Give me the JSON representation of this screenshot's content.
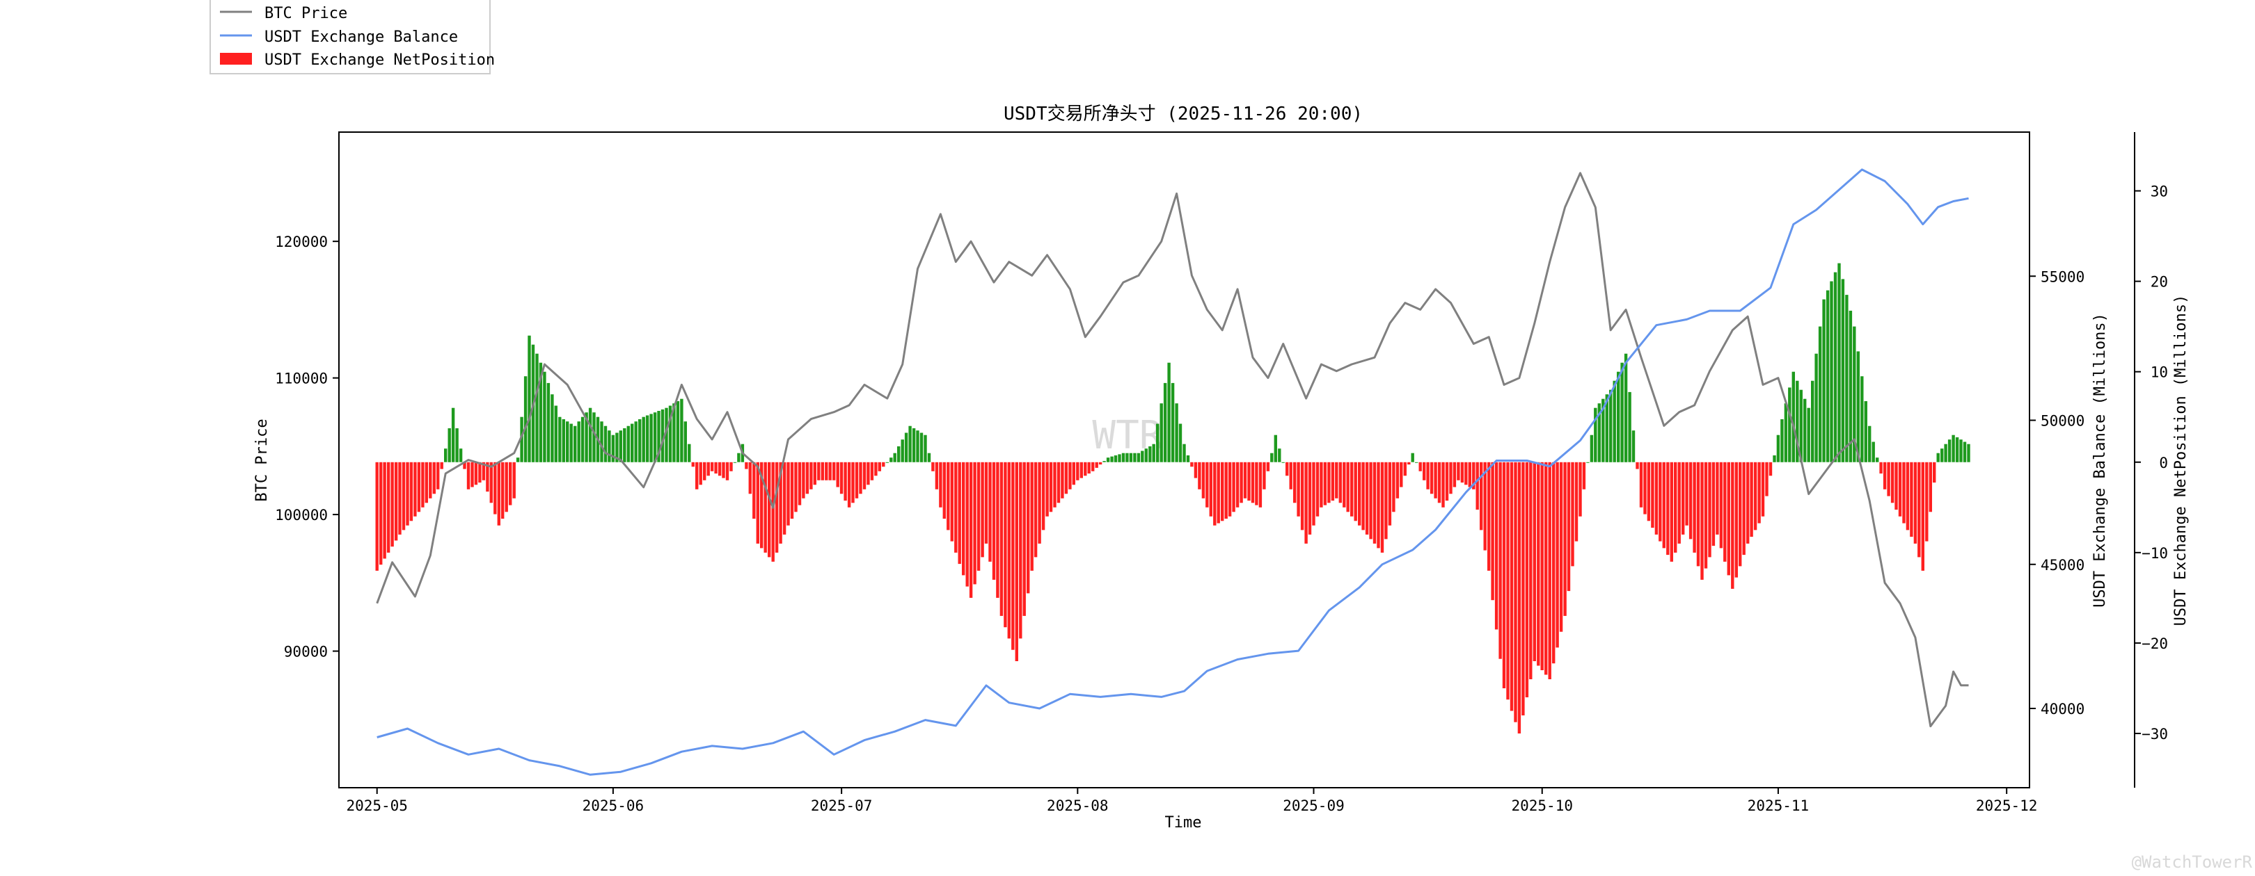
{
  "chart_data": {
    "type": "combo",
    "title": "USDT交易所净头寸 (2025-11-26 20:00)",
    "xlabel": "Time",
    "ylabel_left": "BTC Price",
    "ylabel_right1": "USDT Exchange Balance (Millions)",
    "ylabel_right2": "USDT Exchange NetPosition (Millions)",
    "x_ticks": [
      "2025-05",
      "2025-06",
      "2025-07",
      "2025-08",
      "2025-09",
      "2025-10",
      "2025-11",
      "2025-12"
    ],
    "x_range": [
      "2025-04-26",
      "2025-12-04"
    ],
    "y_left_ticks": [
      "90000",
      "100000",
      "110000",
      "120000"
    ],
    "y_left_range": [
      80000,
      128000
    ],
    "y_right1_ticks": [
      "40000",
      "45000",
      "50000",
      "55000"
    ],
    "y_right1_range": [
      37250,
      60000
    ],
    "y_right2_ticks": [
      "30",
      "20",
      "10",
      "0",
      "−10",
      "−20",
      "−30"
    ],
    "y_right2_range": [
      -36,
      36.5
    ],
    "legend_position": "outside-top-left",
    "legend": [
      {
        "label": "BTC Price",
        "color": "#808080",
        "kind": "line"
      },
      {
        "label": "USDT Exchange Balance",
        "color": "#6495ED",
        "kind": "line"
      },
      {
        "label": "USDT Exchange NetPosition",
        "color": "#ff2020",
        "kind": "patch"
      }
    ],
    "colors": {
      "price": "#808080",
      "balance": "#6495ED",
      "positive": "#1e9a1e",
      "negative": "#ff2020"
    },
    "watermark": "WTR",
    "footer_watermark": "@WatchTowerR",
    "series": [
      {
        "name": "BTC Price",
        "axis": "left",
        "points": [
          [
            "2025-05-01",
            93500
          ],
          [
            "2025-05-03",
            96500
          ],
          [
            "2025-05-06",
            94000
          ],
          [
            "2025-05-08",
            97000
          ],
          [
            "2025-05-10",
            103000
          ],
          [
            "2025-05-13",
            104000
          ],
          [
            "2025-05-16",
            103500
          ],
          [
            "2025-05-19",
            104500
          ],
          [
            "2025-05-21",
            107000
          ],
          [
            "2025-05-23",
            111000
          ],
          [
            "2025-05-26",
            109500
          ],
          [
            "2025-05-28",
            107500
          ],
          [
            "2025-05-31",
            104500
          ],
          [
            "2025-06-02",
            104000
          ],
          [
            "2025-06-05",
            102000
          ],
          [
            "2025-06-07",
            104500
          ],
          [
            "2025-06-10",
            109500
          ],
          [
            "2025-06-12",
            107000
          ],
          [
            "2025-06-14",
            105500
          ],
          [
            "2025-06-16",
            107500
          ],
          [
            "2025-06-18",
            104500
          ],
          [
            "2025-06-20",
            103500
          ],
          [
            "2025-06-22",
            100500
          ],
          [
            "2025-06-24",
            105500
          ],
          [
            "2025-06-27",
            107000
          ],
          [
            "2025-06-30",
            107500
          ],
          [
            "2025-07-02",
            108000
          ],
          [
            "2025-07-04",
            109500
          ],
          [
            "2025-07-07",
            108500
          ],
          [
            "2025-07-09",
            111000
          ],
          [
            "2025-07-11",
            118000
          ],
          [
            "2025-07-14",
            122000
          ],
          [
            "2025-07-16",
            118500
          ],
          [
            "2025-07-18",
            120000
          ],
          [
            "2025-07-21",
            117000
          ],
          [
            "2025-07-23",
            118500
          ],
          [
            "2025-07-26",
            117500
          ],
          [
            "2025-07-28",
            119000
          ],
          [
            "2025-07-31",
            116500
          ],
          [
            "2025-08-02",
            113000
          ],
          [
            "2025-08-04",
            114500
          ],
          [
            "2025-08-07",
            117000
          ],
          [
            "2025-08-09",
            117500
          ],
          [
            "2025-08-12",
            120000
          ],
          [
            "2025-08-14",
            123500
          ],
          [
            "2025-08-16",
            117500
          ],
          [
            "2025-08-18",
            115000
          ],
          [
            "2025-08-20",
            113500
          ],
          [
            "2025-08-22",
            116500
          ],
          [
            "2025-08-24",
            111500
          ],
          [
            "2025-08-26",
            110000
          ],
          [
            "2025-08-28",
            112500
          ],
          [
            "2025-08-31",
            108500
          ],
          [
            "2025-09-02",
            111000
          ],
          [
            "2025-09-04",
            110500
          ],
          [
            "2025-09-06",
            111000
          ],
          [
            "2025-09-09",
            111500
          ],
          [
            "2025-09-11",
            114000
          ],
          [
            "2025-09-13",
            115500
          ],
          [
            "2025-09-15",
            115000
          ],
          [
            "2025-09-17",
            116500
          ],
          [
            "2025-09-19",
            115500
          ],
          [
            "2025-09-22",
            112500
          ],
          [
            "2025-09-24",
            113000
          ],
          [
            "2025-09-26",
            109500
          ],
          [
            "2025-09-28",
            110000
          ],
          [
            "2025-09-30",
            114000
          ],
          [
            "2025-10-02",
            118500
          ],
          [
            "2025-10-04",
            122500
          ],
          [
            "2025-10-06",
            125000
          ],
          [
            "2025-10-08",
            122500
          ],
          [
            "2025-10-10",
            113500
          ],
          [
            "2025-10-12",
            115000
          ],
          [
            "2025-10-14",
            111500
          ],
          [
            "2025-10-17",
            106500
          ],
          [
            "2025-10-19",
            107500
          ],
          [
            "2025-10-21",
            108000
          ],
          [
            "2025-10-23",
            110500
          ],
          [
            "2025-10-26",
            113500
          ],
          [
            "2025-10-28",
            114500
          ],
          [
            "2025-10-30",
            109500
          ],
          [
            "2025-11-01",
            110000
          ],
          [
            "2025-11-03",
            106500
          ],
          [
            "2025-11-05",
            101500
          ],
          [
            "2025-11-07",
            103000
          ],
          [
            "2025-11-09",
            104500
          ],
          [
            "2025-11-11",
            105500
          ],
          [
            "2025-11-13",
            101000
          ],
          [
            "2025-11-15",
            95000
          ],
          [
            "2025-11-17",
            93500
          ],
          [
            "2025-11-19",
            91000
          ],
          [
            "2025-11-21",
            84500
          ],
          [
            "2025-11-23",
            86000
          ],
          [
            "2025-11-24",
            88500
          ],
          [
            "2025-11-25",
            87500
          ],
          [
            "2025-11-26",
            87500
          ]
        ]
      },
      {
        "name": "USDT Exchange Balance",
        "axis": "right1",
        "points": [
          [
            "2025-05-01",
            39000
          ],
          [
            "2025-05-05",
            39300
          ],
          [
            "2025-05-09",
            38800
          ],
          [
            "2025-05-13",
            38400
          ],
          [
            "2025-05-17",
            38600
          ],
          [
            "2025-05-21",
            38200
          ],
          [
            "2025-05-25",
            38000
          ],
          [
            "2025-05-29",
            37700
          ],
          [
            "2025-06-02",
            37800
          ],
          [
            "2025-06-06",
            38100
          ],
          [
            "2025-06-10",
            38500
          ],
          [
            "2025-06-14",
            38700
          ],
          [
            "2025-06-18",
            38600
          ],
          [
            "2025-06-22",
            38800
          ],
          [
            "2025-06-26",
            39200
          ],
          [
            "2025-06-30",
            38400
          ],
          [
            "2025-07-04",
            38900
          ],
          [
            "2025-07-08",
            39200
          ],
          [
            "2025-07-12",
            39600
          ],
          [
            "2025-07-16",
            39400
          ],
          [
            "2025-07-20",
            40800
          ],
          [
            "2025-07-23",
            40200
          ],
          [
            "2025-07-27",
            40000
          ],
          [
            "2025-07-31",
            40500
          ],
          [
            "2025-08-04",
            40400
          ],
          [
            "2025-08-08",
            40500
          ],
          [
            "2025-08-12",
            40400
          ],
          [
            "2025-08-15",
            40600
          ],
          [
            "2025-08-18",
            41300
          ],
          [
            "2025-08-22",
            41700
          ],
          [
            "2025-08-26",
            41900
          ],
          [
            "2025-08-30",
            42000
          ],
          [
            "2025-09-03",
            43400
          ],
          [
            "2025-09-07",
            44200
          ],
          [
            "2025-09-10",
            45000
          ],
          [
            "2025-09-14",
            45500
          ],
          [
            "2025-09-17",
            46200
          ],
          [
            "2025-09-21",
            47500
          ],
          [
            "2025-09-25",
            48600
          ],
          [
            "2025-09-29",
            48600
          ],
          [
            "2025-10-02",
            48400
          ],
          [
            "2025-10-06",
            49300
          ],
          [
            "2025-10-09",
            50400
          ],
          [
            "2025-10-12",
            52000
          ],
          [
            "2025-10-16",
            53300
          ],
          [
            "2025-10-20",
            53500
          ],
          [
            "2025-10-23",
            53800
          ],
          [
            "2025-10-27",
            53800
          ],
          [
            "2025-10-31",
            54600
          ],
          [
            "2025-11-03",
            56800
          ],
          [
            "2025-11-06",
            57300
          ],
          [
            "2025-11-09",
            58000
          ],
          [
            "2025-11-12",
            58700
          ],
          [
            "2025-11-15",
            58300
          ],
          [
            "2025-11-18",
            57500
          ],
          [
            "2025-11-20",
            56800
          ],
          [
            "2025-11-22",
            57400
          ],
          [
            "2025-11-24",
            57600
          ],
          [
            "2025-11-26",
            57700
          ]
        ]
      },
      {
        "name": "USDT Exchange NetPosition",
        "axis": "right2",
        "points": [
          [
            "2025-05-01",
            -12
          ],
          [
            "2025-05-04",
            -8
          ],
          [
            "2025-05-07",
            -5
          ],
          [
            "2025-05-09",
            -3
          ],
          [
            "2025-05-11",
            6
          ],
          [
            "2025-05-13",
            -3
          ],
          [
            "2025-05-15",
            -2
          ],
          [
            "2025-05-17",
            -7
          ],
          [
            "2025-05-19",
            -4
          ],
          [
            "2025-05-21",
            14
          ],
          [
            "2025-05-23",
            10
          ],
          [
            "2025-05-25",
            5
          ],
          [
            "2025-05-27",
            4
          ],
          [
            "2025-05-29",
            6
          ],
          [
            "2025-06-01",
            3
          ],
          [
            "2025-06-03",
            4
          ],
          [
            "2025-06-05",
            5
          ],
          [
            "2025-06-08",
            6
          ],
          [
            "2025-06-10",
            7
          ],
          [
            "2025-06-12",
            -3
          ],
          [
            "2025-06-14",
            -1
          ],
          [
            "2025-06-16",
            -2
          ],
          [
            "2025-06-18",
            2
          ],
          [
            "2025-06-20",
            -9
          ],
          [
            "2025-06-22",
            -11
          ],
          [
            "2025-06-24",
            -7
          ],
          [
            "2025-06-26",
            -4
          ],
          [
            "2025-06-28",
            -2
          ],
          [
            "2025-06-30",
            -2
          ],
          [
            "2025-07-02",
            -5
          ],
          [
            "2025-07-04",
            -3
          ],
          [
            "2025-07-06",
            -1
          ],
          [
            "2025-07-08",
            1
          ],
          [
            "2025-07-10",
            4
          ],
          [
            "2025-07-12",
            3
          ],
          [
            "2025-07-14",
            -5
          ],
          [
            "2025-07-16",
            -10
          ],
          [
            "2025-07-18",
            -15
          ],
          [
            "2025-07-20",
            -9
          ],
          [
            "2025-07-22",
            -17
          ],
          [
            "2025-07-24",
            -22
          ],
          [
            "2025-07-26",
            -12
          ],
          [
            "2025-07-28",
            -6
          ],
          [
            "2025-07-30",
            -4
          ],
          [
            "2025-08-01",
            -2
          ],
          [
            "2025-08-03",
            -1
          ],
          [
            "2025-08-05",
            0.5
          ],
          [
            "2025-08-07",
            1
          ],
          [
            "2025-08-09",
            1
          ],
          [
            "2025-08-11",
            2
          ],
          [
            "2025-08-13",
            11
          ],
          [
            "2025-08-15",
            2
          ],
          [
            "2025-08-17",
            -3
          ],
          [
            "2025-08-19",
            -7
          ],
          [
            "2025-08-21",
            -6
          ],
          [
            "2025-08-23",
            -4
          ],
          [
            "2025-08-25",
            -5
          ],
          [
            "2025-08-27",
            3
          ],
          [
            "2025-08-29",
            -3
          ],
          [
            "2025-08-31",
            -9
          ],
          [
            "2025-09-02",
            -5
          ],
          [
            "2025-09-04",
            -4
          ],
          [
            "2025-09-06",
            -6
          ],
          [
            "2025-09-08",
            -8
          ],
          [
            "2025-09-10",
            -10
          ],
          [
            "2025-09-12",
            -4
          ],
          [
            "2025-09-14",
            1
          ],
          [
            "2025-09-16",
            -3
          ],
          [
            "2025-09-18",
            -5
          ],
          [
            "2025-09-20",
            -2
          ],
          [
            "2025-09-22",
            -3
          ],
          [
            "2025-09-24",
            -12
          ],
          [
            "2025-09-26",
            -25
          ],
          [
            "2025-09-28",
            -30
          ],
          [
            "2025-09-30",
            -22
          ],
          [
            "2025-10-02",
            -24
          ],
          [
            "2025-10-04",
            -17
          ],
          [
            "2025-10-06",
            -6
          ],
          [
            "2025-10-08",
            6
          ],
          [
            "2025-10-10",
            8
          ],
          [
            "2025-10-12",
            12
          ],
          [
            "2025-10-14",
            -5
          ],
          [
            "2025-10-16",
            -8
          ],
          [
            "2025-10-18",
            -11
          ],
          [
            "2025-10-20",
            -7
          ],
          [
            "2025-10-22",
            -13
          ],
          [
            "2025-10-24",
            -8
          ],
          [
            "2025-10-26",
            -14
          ],
          [
            "2025-10-28",
            -9
          ],
          [
            "2025-10-30",
            -6
          ],
          [
            "2025-11-01",
            3
          ],
          [
            "2025-11-03",
            10
          ],
          [
            "2025-11-05",
            6
          ],
          [
            "2025-11-07",
            18
          ],
          [
            "2025-11-09",
            22
          ],
          [
            "2025-11-11",
            15
          ],
          [
            "2025-11-13",
            4
          ],
          [
            "2025-11-15",
            -3
          ],
          [
            "2025-11-17",
            -6
          ],
          [
            "2025-11-19",
            -9
          ],
          [
            "2025-11-20",
            -12
          ],
          [
            "2025-11-22",
            1
          ],
          [
            "2025-11-24",
            3
          ],
          [
            "2025-11-26",
            2
          ]
        ]
      }
    ]
  }
}
